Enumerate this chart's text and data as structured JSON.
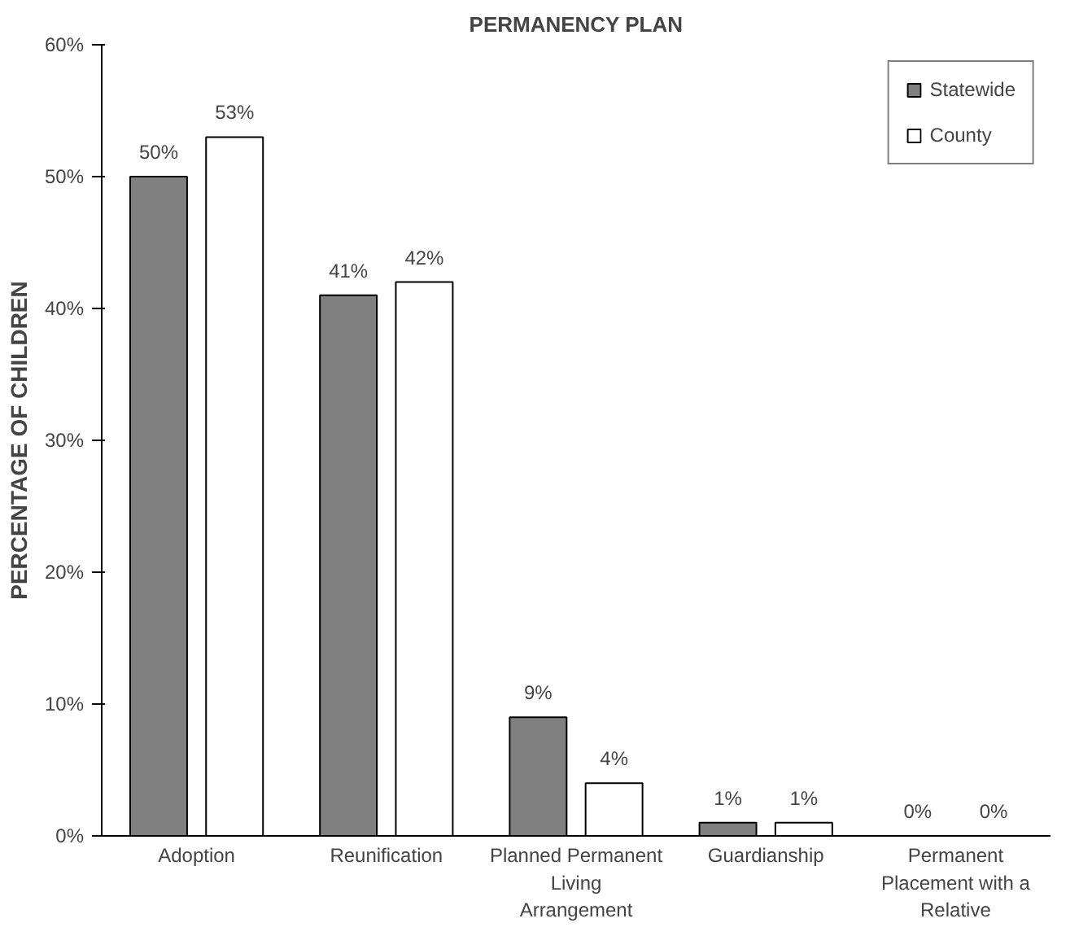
{
  "chart_data": {
    "type": "bar",
    "title": "PERMANENCY PLAN",
    "ylabel": "PERCENTAGE OF CHILDREN",
    "categories": [
      "Adoption",
      "Reunification",
      "Planned Permanent Living Arrangement",
      "Guardianship",
      "Permanent Placement with a Relative"
    ],
    "series": [
      {
        "name": "Statewide",
        "color": "#808080",
        "values": [
          50,
          41,
          9,
          1,
          0
        ],
        "value_labels": [
          "50%",
          "41%",
          "9%",
          "1%",
          "0%"
        ]
      },
      {
        "name": "County",
        "color": "#ffffff",
        "values": [
          53,
          42,
          4,
          1,
          0
        ],
        "value_labels": [
          "53%",
          "42%",
          "4%",
          "1%",
          "0%"
        ]
      }
    ],
    "ylim": [
      0,
      60
    ],
    "yticks": [
      {
        "value": 0,
        "label": "0%"
      },
      {
        "value": 10,
        "label": "10%"
      },
      {
        "value": 20,
        "label": "20%"
      },
      {
        "value": 30,
        "label": "30%"
      },
      {
        "value": 40,
        "label": "40%"
      },
      {
        "value": 50,
        "label": "50%"
      },
      {
        "value": 60,
        "label": "60%"
      }
    ],
    "grid": false,
    "legend": "top right"
  }
}
